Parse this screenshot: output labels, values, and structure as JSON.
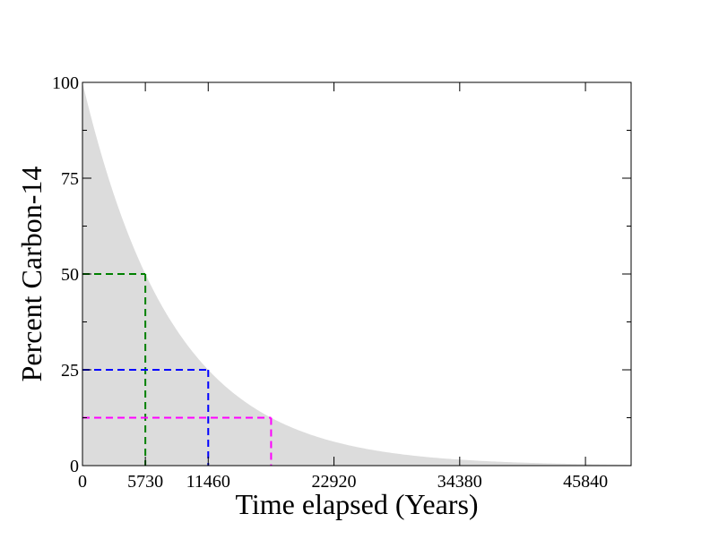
{
  "chart_data": {
    "type": "area",
    "title": "",
    "xlabel": "Time elapsed (Years)",
    "ylabel": "Percent Carbon-14",
    "xlim": [
      0,
      50000
    ],
    "ylim": [
      0,
      100
    ],
    "x_ticks": [
      0,
      5730,
      11460,
      22920,
      34380,
      45840
    ],
    "x_tick_labels": [
      "0",
      "5730",
      "11460",
      "22920",
      "34380",
      "45840"
    ],
    "y_ticks": [
      0,
      25,
      50,
      75,
      100
    ],
    "y_tick_labels": [
      "0",
      "25",
      "50",
      "75",
      "100"
    ],
    "grid": false,
    "legend": "none",
    "half_life_years": 5730,
    "initial_percent": 100,
    "fill_color": "#dcdcdc",
    "series": [
      {
        "values_x": [
          0,
          2000,
          4000,
          5730,
          8000,
          11460,
          14000,
          17190,
          20000,
          22920,
          26000,
          30000,
          34380,
          38000,
          42000,
          45840,
          50000
        ],
        "values_y": [
          100,
          78.5,
          61.6,
          50,
          38.0,
          25,
          18.4,
          12.5,
          8.9,
          6.25,
          4.3,
          2.67,
          1.56,
          1.01,
          0.62,
          0.39,
          0.24
        ]
      }
    ],
    "annotations": [
      {
        "type": "half-life-guide",
        "x": 5730,
        "y": 50,
        "color": "#008000",
        "style": "dashed"
      },
      {
        "type": "half-life-guide",
        "x": 11460,
        "y": 25,
        "color": "#0000ff",
        "style": "dashed"
      },
      {
        "type": "half-life-guide",
        "x": 17190,
        "y": 12.5,
        "color": "#ff00ff",
        "style": "dashed"
      }
    ]
  }
}
